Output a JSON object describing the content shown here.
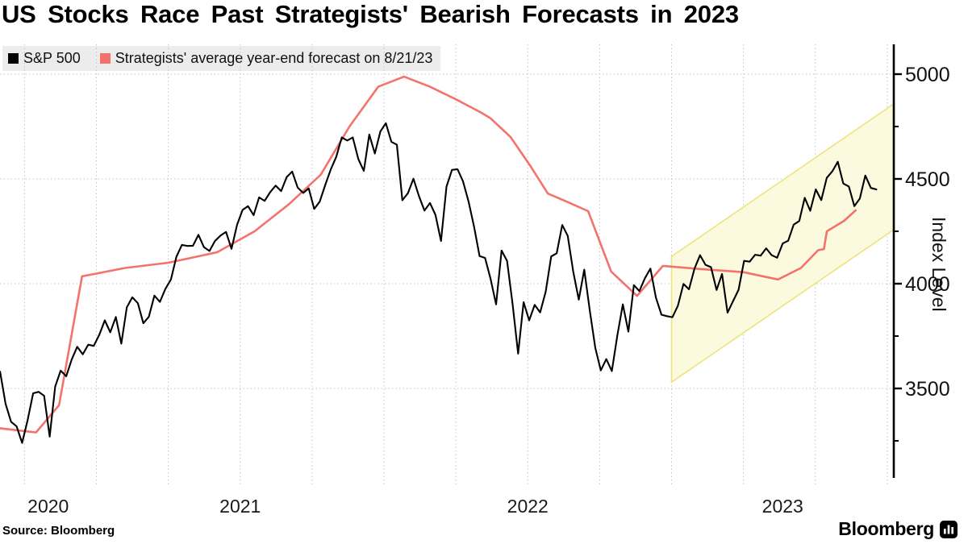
{
  "title": "US Stocks Race Past Strategists' Bearish Forecasts in 2023",
  "source_label": "Source: Bloomberg",
  "brand": {
    "name": "Bloomberg",
    "logo_icon": "bar-chart-icon"
  },
  "legend": [
    {
      "label": "S&P 500",
      "color": "#000000"
    },
    {
      "label": "Strategists' average year-end forecast on 8/21/23",
      "color": "#f3736c"
    }
  ],
  "chart_data": {
    "type": "line",
    "title": "US Stocks Race Past Strategists' Bearish Forecasts in 2023",
    "ylabel": "Index Level",
    "xlabel": "",
    "y_ticks": [
      5000,
      4500,
      4000,
      3500
    ],
    "y_minor_ticks": [
      4750,
      4250,
      3750,
      3250
    ],
    "x_tick_years": [
      "2020",
      "2021",
      "2022",
      "2023"
    ],
    "xlim_years": [
      2020.665,
      2023.775
    ],
    "ylim": [
      2850,
      5140
    ],
    "grid": "dotted; vertical quarterly, horizontal every 500",
    "colors": {
      "sp500": "#000000",
      "forecast": "#f3736c",
      "band_fill": "#fcf9da",
      "band_stroke": "#ece47e",
      "gridline": "#c4c4c4",
      "axis": "#000000"
    },
    "series": [
      {
        "name": "S&P 500",
        "sampling": "weekly",
        "start_year_frac": 2020.665,
        "interval_years": 0.019165,
        "values": [
          3580,
          3427,
          3341,
          3319,
          3240,
          3348,
          3477,
          3484,
          3465,
          3270,
          3509,
          3585,
          3558,
          3638,
          3699,
          3663,
          3709,
          3703,
          3756,
          3825,
          3768,
          3841,
          3714,
          3887,
          3935,
          3907,
          3811,
          3842,
          3943,
          3913,
          3975,
          4020,
          4129,
          4185,
          4180,
          4181,
          4233,
          4174,
          4156,
          4204,
          4230,
          4247,
          4166,
          4281,
          4352,
          4370,
          4327,
          4412,
          4395,
          4437,
          4468,
          4442,
          4509,
          4535,
          4459,
          4433,
          4455,
          4357,
          4391,
          4471,
          4545,
          4605,
          4698,
          4683,
          4698,
          4595,
          4538,
          4712,
          4621,
          4726,
          4766,
          4677,
          4663,
          4398,
          4432,
          4501,
          4419,
          4349,
          4385,
          4329,
          4204,
          4463,
          4543,
          4546,
          4488,
          4393,
          4272,
          4132,
          4123,
          4024,
          3901,
          4158,
          4109,
          3901,
          3666,
          3912,
          3825,
          3899,
          3863,
          3962,
          4130,
          4145,
          4280,
          4228,
          4058,
          3924,
          4067,
          3873,
          3693,
          3586,
          3640,
          3583,
          3753,
          3901,
          3771,
          3993,
          3965,
          4026,
          4072,
          3934,
          3852,
          3845,
          3840,
          3895,
          3999,
          3973,
          4071,
          4136,
          4090,
          4079,
          3970,
          4046,
          3862,
          3917,
          3971,
          4109,
          4105,
          4138,
          4134,
          4169,
          4136,
          4124,
          4192,
          4205,
          4282,
          4299,
          4410,
          4348,
          4450,
          4399,
          4505,
          4536,
          4582,
          4478,
          4464,
          4370,
          4406,
          4516,
          4457,
          4450
        ]
      },
      {
        "name": "Strategists' average year-end forecast on 8/21/23",
        "sampling": "keypoints",
        "points": [
          [
            2020.665,
            3310
          ],
          [
            2020.79,
            3290
          ],
          [
            2020.87,
            3420
          ],
          [
            2020.95,
            4035
          ],
          [
            2021.1,
            4075
          ],
          [
            2021.25,
            4100
          ],
          [
            2021.42,
            4150
          ],
          [
            2021.55,
            4250
          ],
          [
            2021.67,
            4380
          ],
          [
            2021.78,
            4520
          ],
          [
            2021.88,
            4750
          ],
          [
            2021.98,
            4940
          ],
          [
            2022.07,
            4988
          ],
          [
            2022.16,
            4940
          ],
          [
            2022.25,
            4880
          ],
          [
            2022.34,
            4815
          ],
          [
            2022.37,
            4790
          ],
          [
            2022.44,
            4700
          ],
          [
            2022.51,
            4560
          ],
          [
            2022.57,
            4430
          ],
          [
            2022.63,
            4395
          ],
          [
            2022.71,
            4346
          ],
          [
            2022.79,
            4058
          ],
          [
            2022.88,
            3942
          ],
          [
            2022.97,
            4085
          ],
          [
            2023.1,
            4070
          ],
          [
            2023.25,
            4055
          ],
          [
            2023.37,
            4020
          ],
          [
            2023.45,
            4075
          ],
          [
            2023.51,
            4160
          ],
          [
            2023.53,
            4165
          ],
          [
            2023.54,
            4250
          ],
          [
            2023.6,
            4300
          ],
          [
            2023.64,
            4350
          ]
        ]
      }
    ],
    "forecast_band": {
      "name": "2023 forecast range band",
      "polygon_year_value": [
        [
          2023.0,
          4130
        ],
        [
          2023.775,
          4860
        ],
        [
          2023.775,
          4260
        ],
        [
          2023.0,
          3530
        ]
      ]
    }
  }
}
